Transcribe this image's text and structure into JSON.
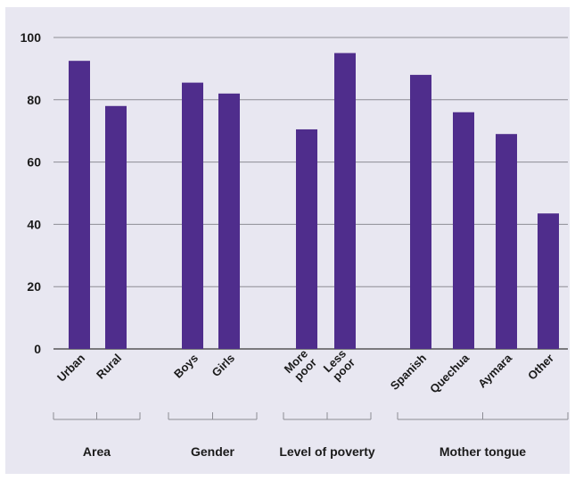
{
  "colors": {
    "background": "#e8e7f1",
    "bar": "#4f2d8c",
    "grid": "#8c8c94",
    "text": "#1a1a1a"
  },
  "chart_data": {
    "type": "bar",
    "title": "",
    "xlabel": "",
    "ylabel": "",
    "ylim": [
      0,
      100
    ],
    "yticks": [
      0,
      20,
      40,
      60,
      80,
      100
    ],
    "grid": true,
    "legend": "none",
    "categories": [
      [
        "Urban"
      ],
      [
        "Rural"
      ],
      [
        "Boys"
      ],
      [
        "Girls"
      ],
      [
        "More",
        "poor"
      ],
      [
        "Less",
        "poor"
      ],
      [
        "Spanish"
      ],
      [
        "Quechua"
      ],
      [
        "Aymara"
      ],
      [
        "Other"
      ]
    ],
    "values": [
      92.5,
      78,
      85.5,
      82,
      70.5,
      95,
      88,
      76,
      69,
      43.5
    ],
    "groups": [
      {
        "label": "Area",
        "members": [
          0,
          1
        ]
      },
      {
        "label": "Gender",
        "members": [
          2,
          3
        ]
      },
      {
        "label": "Level of poverty",
        "members": [
          4,
          5
        ]
      },
      {
        "label": "Mother tongue",
        "members": [
          6,
          7,
          8,
          9
        ]
      }
    ]
  }
}
